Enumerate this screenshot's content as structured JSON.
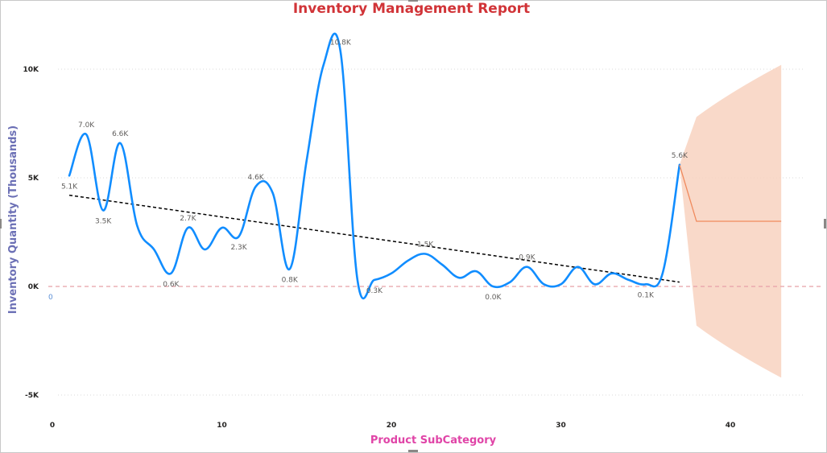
{
  "chart_data": {
    "type": "line",
    "title": "Inventory Management Report",
    "xlabel": "Product SubCategory",
    "ylabel": "Inventory Quantity (Thousands)",
    "xlim": [
      0,
      44
    ],
    "ylim": [
      -6,
      11.8
    ],
    "x_ticks": [
      {
        "value": 0,
        "label": "0"
      },
      {
        "value": 10,
        "label": "10"
      },
      {
        "value": 20,
        "label": "20"
      },
      {
        "value": 30,
        "label": "30"
      },
      {
        "value": 40,
        "label": "40"
      }
    ],
    "y_ticks": [
      {
        "value": 10,
        "label": "10K"
      },
      {
        "value": 5,
        "label": "5K"
      },
      {
        "value": 0,
        "label": "0K"
      },
      {
        "value": -5,
        "label": "-5K"
      }
    ],
    "axis_origin_label": "0",
    "grid": true,
    "series": [
      {
        "color": "#118dff",
        "x": [
          1,
          2,
          3,
          4,
          5,
          6,
          7,
          8,
          9,
          10,
          11,
          12,
          13,
          14,
          15,
          16,
          17,
          18,
          19,
          20,
          21,
          22,
          23,
          24,
          25,
          26,
          27,
          28,
          29,
          30,
          31,
          32,
          33,
          34,
          35,
          36,
          37
        ],
        "y": [
          5.1,
          7.0,
          3.5,
          6.6,
          2.8,
          1.7,
          0.6,
          2.7,
          1.7,
          2.7,
          2.3,
          4.6,
          4.3,
          0.8,
          5.8,
          10.2,
          10.8,
          0.3,
          0.3,
          0.6,
          1.2,
          1.5,
          1.0,
          0.4,
          0.7,
          0.0,
          0.2,
          0.9,
          0.1,
          0.1,
          0.9,
          0.1,
          0.6,
          0.3,
          0.1,
          0.6,
          5.6
        ]
      }
    ],
    "data_labels": [
      {
        "x": 1,
        "y": 5.1,
        "text": "5.1K",
        "pos": "below"
      },
      {
        "x": 2,
        "y": 7.0,
        "text": "7.0K",
        "pos": "above"
      },
      {
        "x": 3,
        "y": 3.5,
        "text": "3.5K",
        "pos": "below"
      },
      {
        "x": 4,
        "y": 6.6,
        "text": "6.6K",
        "pos": "above"
      },
      {
        "x": 7,
        "y": 0.6,
        "text": "0.6K",
        "pos": "below"
      },
      {
        "x": 8,
        "y": 2.7,
        "text": "2.7K",
        "pos": "above"
      },
      {
        "x": 11,
        "y": 2.3,
        "text": "2.3K",
        "pos": "below"
      },
      {
        "x": 12,
        "y": 4.6,
        "text": "4.6K",
        "pos": "above"
      },
      {
        "x": 14,
        "y": 0.8,
        "text": "0.8K",
        "pos": "below"
      },
      {
        "x": 17,
        "y": 10.8,
        "text": "10.8K",
        "pos": "above"
      },
      {
        "x": 19,
        "y": 0.3,
        "text": "0.3K",
        "pos": "below"
      },
      {
        "x": 22,
        "y": 1.5,
        "text": "1.5K",
        "pos": "above"
      },
      {
        "x": 26,
        "y": 0.0,
        "text": "0.0K",
        "pos": "below"
      },
      {
        "x": 28,
        "y": 0.9,
        "text": "0.9K",
        "pos": "above"
      },
      {
        "x": 35,
        "y": 0.1,
        "text": "0.1K",
        "pos": "below"
      },
      {
        "x": 37,
        "y": 5.6,
        "text": "5.6K",
        "pos": "above"
      }
    ],
    "trend_line": {
      "x": [
        1,
        37
      ],
      "y": [
        4.2,
        0.2
      ],
      "color": "#000000",
      "style": "dashed"
    },
    "reference_line": {
      "y": 0,
      "color": "#e8a0a8",
      "style": "dashed"
    },
    "forecast": {
      "color": "#f08a5d",
      "band_color": "#f8d2c0",
      "x": [
        37,
        38,
        43
      ],
      "y": [
        5.6,
        3.0,
        3.0
      ],
      "upper": [
        5.6,
        7.8,
        10.2
      ],
      "lower": [
        5.6,
        -1.8,
        -4.2
      ]
    },
    "colors": {
      "title": "#d13438",
      "xlabel": "#e044a7",
      "ylabel": "#6b6fb5",
      "grid": "#d9d9d9",
      "origin_label": "#5b8fd6"
    }
  }
}
